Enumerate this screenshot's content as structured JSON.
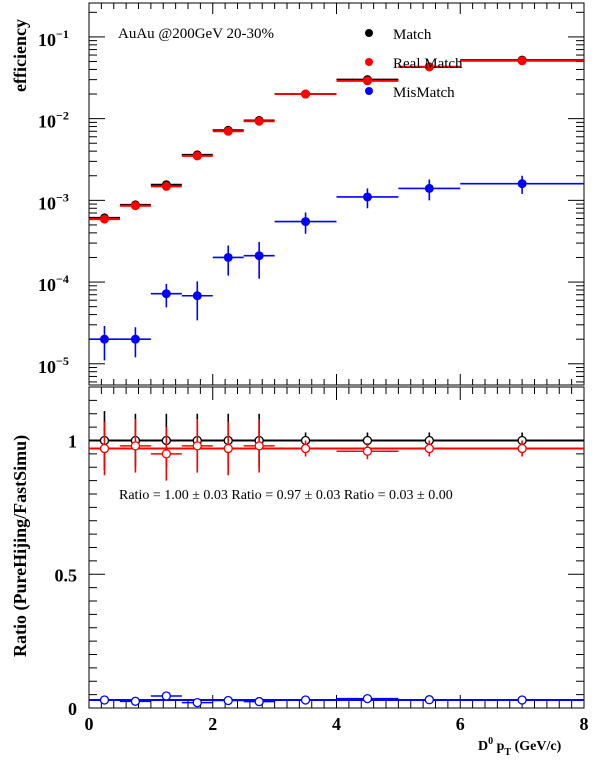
{
  "colors": {
    "match": "#000000",
    "real": "#ff0000",
    "mis": "#0000ff"
  },
  "top": {
    "annotation": "AuAu @200GeV  20-30%",
    "ylabel": "efficiency",
    "legend": [
      "Match",
      "Real Match",
      "MisMatch"
    ],
    "y_ticks": [
      {
        "value": 0.1,
        "base": "10",
        "exp": "−1"
      },
      {
        "value": 0.01,
        "base": "10",
        "exp": "−2"
      },
      {
        "value": 0.001,
        "base": "10",
        "exp": "−3"
      },
      {
        "value": 0.0001,
        "base": "10",
        "exp": "−4"
      },
      {
        "value": 1e-05,
        "base": "10",
        "exp": "−5"
      }
    ]
  },
  "bottom": {
    "ylabel": "Ratio (PureHijing/FastSimu)",
    "ratio_text": "Ratio = 1.00 ± 0.03  Ratio = 0.97 ± 0.03  Ratio = 0.03 ± 0.00",
    "y_ticks": [
      "0",
      "0.5",
      "1"
    ],
    "x_ticks": [
      "0",
      "2",
      "4",
      "6",
      "8"
    ],
    "xlabel_main": "D",
    "xlabel_sup": "0",
    "xlabel_p": " p",
    "xlabel_sub": "T",
    "xlabel_unit": " (GeV/c)"
  },
  "chart_data": [
    {
      "type": "scatter",
      "panel": "efficiency",
      "yscale": "log",
      "ylim": [
        5.5e-06,
        0.26
      ],
      "xlim": [
        0,
        8
      ],
      "bin_edges": [
        0,
        0.5,
        1,
        1.5,
        2,
        2.5,
        3,
        4,
        5,
        6,
        8
      ],
      "series": [
        {
          "name": "Match",
          "x": [
            0.25,
            0.75,
            1.25,
            1.75,
            2.25,
            2.75,
            3.5,
            4.5,
            5.5,
            7.0
          ],
          "values": [
            0.00061,
            0.00088,
            0.00155,
            0.0036,
            0.0072,
            0.0095,
            0.02,
            0.03,
            0.043,
            0.052
          ],
          "errors": [
            4e-05,
            5e-05,
            8e-05,
            0.0002,
            0.0004,
            0.0005,
            0.0012,
            0.002,
            0.003,
            0.004
          ]
        },
        {
          "name": "Real Match",
          "x": [
            0.25,
            0.75,
            1.25,
            1.75,
            2.25,
            2.75,
            3.5,
            4.5,
            5.5,
            7.0
          ],
          "values": [
            0.00059,
            0.00086,
            0.00148,
            0.0035,
            0.007,
            0.0093,
            0.02,
            0.029,
            0.043,
            0.051
          ],
          "errors": [
            4e-05,
            5e-05,
            8e-05,
            0.0002,
            0.0004,
            0.0005,
            0.0012,
            0.002,
            0.003,
            0.004
          ]
        },
        {
          "name": "MisMatch",
          "x": [
            0.25,
            0.75,
            1.25,
            1.75,
            2.25,
            2.75,
            3.5,
            4.5,
            5.5,
            7.0
          ],
          "values": [
            2e-05,
            2e-05,
            7.2e-05,
            6.8e-05,
            0.0002,
            0.00021,
            0.00055,
            0.0011,
            0.0014,
            0.0016
          ],
          "err_low": [
            9e-06,
            8e-06,
            2.3e-05,
            3.4e-05,
            8e-05,
            0.0001,
            0.00016,
            0.0003,
            0.0004,
            0.0004
          ],
          "err_high": [
            9e-06,
            8e-06,
            2.3e-05,
            3.4e-05,
            8e-05,
            0.0001,
            0.00016,
            0.0003,
            0.0004,
            0.0004
          ]
        }
      ]
    },
    {
      "type": "scatter",
      "panel": "ratio",
      "ylim": [
        0,
        1.2
      ],
      "xlim": [
        0,
        8
      ],
      "xlabel": "D0 pT (GeV/c)",
      "ylabel": "Ratio (PureHijing/FastSimu)",
      "bin_edges": [
        0,
        0.5,
        1,
        1.5,
        2,
        2.5,
        3,
        4,
        5,
        6,
        8
      ],
      "series": [
        {
          "x": [
            0.25,
            0.75,
            1.25,
            1.75,
            2.25,
            2.75,
            3.5,
            4.5,
            5.5,
            7.0
          ],
          "values": [
            1.0,
            1.0,
            1.0,
            1.0,
            1.0,
            1.0,
            1.0,
            1.0,
            1.0,
            1.0
          ],
          "errors": [
            0.11,
            0.1,
            0.1,
            0.1,
            0.1,
            0.1,
            0.03,
            0.03,
            0.03,
            0.03
          ],
          "fit": 1.0
        },
        {
          "x": [
            0.25,
            0.75,
            1.25,
            1.75,
            2.25,
            2.75,
            3.5,
            4.5,
            5.5,
            7.0
          ],
          "values": [
            0.97,
            0.98,
            0.95,
            0.98,
            0.97,
            0.98,
            0.97,
            0.96,
            0.97,
            0.97
          ],
          "errors": [
            0.1,
            0.1,
            0.1,
            0.1,
            0.1,
            0.1,
            0.03,
            0.03,
            0.03,
            0.03
          ],
          "fit": 0.97
        },
        {
          "x": [
            0.25,
            0.75,
            1.25,
            1.75,
            2.25,
            2.75,
            3.5,
            4.5,
            5.5,
            7.0
          ],
          "values": [
            0.03,
            0.025,
            0.045,
            0.02,
            0.028,
            0.024,
            0.03,
            0.035,
            0.031,
            0.03
          ],
          "errors": [
            0.005,
            0.005,
            0.008,
            0.005,
            0.005,
            0.005,
            0.004,
            0.004,
            0.004,
            0.004
          ],
          "fit": 0.03
        }
      ]
    }
  ]
}
